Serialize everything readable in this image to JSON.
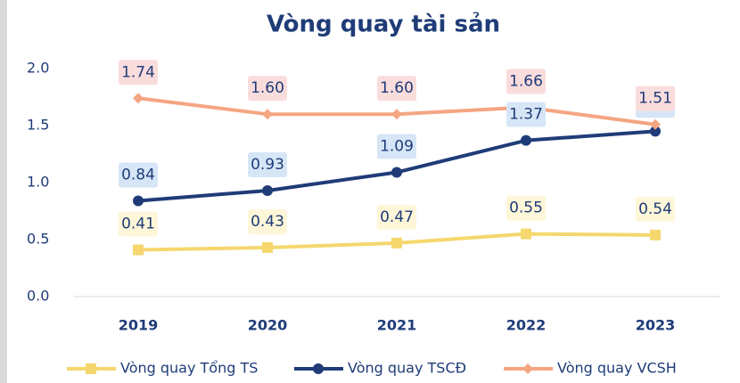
{
  "chart_data": {
    "type": "line",
    "title": "Vòng quay tài sản",
    "categories": [
      "2019",
      "2020",
      "2021",
      "2022",
      "2023"
    ],
    "series": [
      {
        "name": "Vòng quay Tổng TS",
        "color": "#f5d76e",
        "marker": "square",
        "label_bg": "#fdf6d8",
        "values": [
          0.41,
          0.43,
          0.47,
          0.55,
          0.54
        ],
        "value_labels": [
          "0.41",
          "0.43",
          "0.47",
          "0.55",
          "0.54"
        ]
      },
      {
        "name": "Vòng quay TSCĐ",
        "color": "#1f3c78",
        "marker": "circle",
        "label_bg": "#d6e6f7",
        "values": [
          0.84,
          0.93,
          1.09,
          1.37,
          1.45
        ],
        "value_labels": [
          "0.84",
          "0.93",
          "1.09",
          "1.37",
          "1.45"
        ]
      },
      {
        "name": "Vòng quay VCSH",
        "color": "#f4a582",
        "marker": "diamond",
        "label_bg": "#f9dcdc",
        "values": [
          1.74,
          1.6,
          1.6,
          1.66,
          1.51
        ],
        "value_labels": [
          "1.74",
          "1.60",
          "1.60",
          "1.66",
          "1.51"
        ]
      }
    ],
    "ylim": [
      0,
      2
    ],
    "yticks": [
      {
        "value": 0,
        "label": "0.0"
      },
      0.5,
      {
        "value": 1,
        "label": "1.0"
      },
      1.5,
      {
        "value": 2,
        "label": "2.0"
      }
    ],
    "grid": false,
    "legend": "bottom"
  }
}
